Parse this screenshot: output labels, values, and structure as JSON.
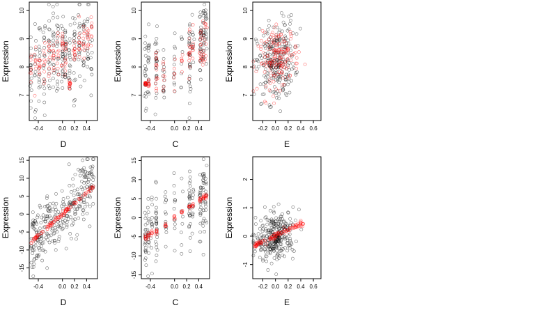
{
  "chart_data": [
    {
      "type": "scatter",
      "panel": "top-left",
      "xlabel": "D",
      "ylabel": "Expression",
      "xlim": [
        -0.55,
        0.58
      ],
      "ylim": [
        6.1,
        10.3
      ],
      "xticks": [
        -0.4,
        0.0,
        0.2,
        0.4
      ],
      "xtick_labels": [
        "-0.4",
        "0.0",
        "0.2",
        "0.4"
      ],
      "yticks": [
        7,
        8,
        9,
        10
      ],
      "ytick_labels": [
        "7",
        "8",
        "9",
        "10"
      ],
      "grid": false,
      "legend": "none",
      "series": [
        {
          "color": "#000000",
          "x_groups": [
            -0.52,
            -0.45,
            -0.38,
            -0.3,
            -0.22,
            -0.15,
            -0.08,
            0.0,
            0.05,
            0.12,
            0.2,
            0.28,
            0.35,
            0.42,
            0.48
          ],
          "y_centers": [
            7.8,
            7.9,
            8.0,
            8.1,
            8.3,
            8.4,
            8.5,
            8.6,
            8.5,
            8.3,
            8.7,
            8.9,
            8.8,
            9.0,
            8.7
          ],
          "y_spread": [
            0.9,
            0.8,
            0.9,
            0.9,
            0.8,
            0.9,
            0.9,
            0.8,
            0.7,
            0.8,
            0.9,
            0.8,
            0.8,
            0.8,
            0.8
          ],
          "n_per_group": [
            14,
            12,
            16,
            18,
            18,
            18,
            18,
            22,
            20,
            18,
            20,
            18,
            16,
            14,
            10
          ]
        },
        {
          "color": "#ff0000",
          "x_groups": [
            -0.52,
            -0.45,
            -0.38,
            -0.3,
            -0.22,
            -0.15,
            -0.08,
            0.0,
            0.05,
            0.12,
            0.2,
            0.28,
            0.35,
            0.42,
            0.48
          ],
          "y_centers": [
            7.9,
            8.0,
            8.1,
            8.2,
            8.3,
            8.4,
            8.5,
            8.6,
            8.3,
            7.4,
            8.6,
            8.8,
            8.8,
            8.9,
            9.2
          ],
          "y_spread": [
            0.3,
            0.3,
            0.3,
            0.3,
            0.3,
            0.3,
            0.3,
            0.3,
            0.5,
            0.15,
            0.3,
            0.3,
            0.3,
            0.3,
            0.3
          ],
          "n_per_group": [
            8,
            8,
            10,
            10,
            10,
            10,
            10,
            12,
            12,
            12,
            12,
            10,
            10,
            10,
            8
          ]
        }
      ]
    },
    {
      "type": "scatter",
      "panel": "top-middle",
      "xlabel": "C",
      "ylabel": "Expression",
      "xlim": [
        -0.55,
        0.58
      ],
      "ylim": [
        6.1,
        10.3
      ],
      "xticks": [
        -0.4,
        0.0,
        0.2,
        0.4
      ],
      "xtick_labels": [
        "-0.4",
        "0.0",
        "0.2",
        "0.4"
      ],
      "yticks": [
        7,
        8,
        9,
        10
      ],
      "ytick_labels": [
        "7",
        "8",
        "9",
        "10"
      ],
      "grid": false,
      "legend": "none",
      "series": [
        {
          "color": "#000000",
          "x_groups": [
            -0.48,
            -0.43,
            -0.3,
            -0.18,
            0.0,
            0.12,
            0.25,
            0.3,
            0.43,
            0.48,
            0.52
          ],
          "y_centers": [
            7.6,
            7.8,
            8.1,
            8.0,
            8.0,
            8.3,
            8.4,
            8.5,
            8.9,
            9.0,
            9.2
          ],
          "y_spread": [
            0.7,
            0.7,
            0.7,
            0.6,
            0.5,
            0.5,
            0.7,
            0.6,
            0.6,
            0.6,
            0.6
          ],
          "n_per_group": [
            22,
            18,
            26,
            14,
            12,
            8,
            30,
            10,
            26,
            22,
            16
          ]
        },
        {
          "color": "#ff0000",
          "x_groups": [
            -0.48,
            -0.43,
            -0.3,
            -0.18,
            0.0,
            0.12,
            0.25,
            0.3,
            0.43,
            0.48,
            0.52
          ],
          "y_centers": [
            7.4,
            7.4,
            7.9,
            7.8,
            8.0,
            8.2,
            8.4,
            8.6,
            8.8,
            8.9,
            9.0
          ],
          "y_spread": [
            0.05,
            0.1,
            0.5,
            0.4,
            0.3,
            0.3,
            0.5,
            0.5,
            0.5,
            0.5,
            0.5
          ],
          "n_per_group": [
            14,
            10,
            14,
            8,
            6,
            6,
            14,
            8,
            14,
            10,
            8
          ]
        }
      ]
    },
    {
      "type": "scatter",
      "panel": "top-right",
      "xlabel": "E",
      "ylabel": "Expression",
      "xlim": [
        -0.36,
        0.72
      ],
      "ylim": [
        6.1,
        10.3
      ],
      "xticks": [
        -0.2,
        0.0,
        0.2,
        0.4,
        0.6
      ],
      "xtick_labels": [
        "-0.2",
        "0.0",
        "0.2",
        "0.4",
        "0.6"
      ],
      "yticks": [
        7,
        8,
        9,
        10
      ],
      "ytick_labels": [
        "7",
        "8",
        "9",
        "10"
      ],
      "grid": false,
      "legend": "none",
      "series": [
        {
          "color": "#000000",
          "x_center": 0.0,
          "x_spread": 0.15,
          "y_base": 8.2,
          "slope": 1.6,
          "y_spread": 0.7,
          "n": 260
        },
        {
          "color": "#ff0000",
          "x_center": 0.05,
          "x_spread": 0.16,
          "y_base": 8.3,
          "slope": 1.4,
          "y_spread": 0.5,
          "n": 160
        }
      ]
    },
    {
      "type": "scatter",
      "panel": "bottom-left",
      "xlabel": "D",
      "ylabel": "Expression",
      "xlim": [
        -0.55,
        0.58
      ],
      "ylim": [
        -18,
        16
      ],
      "xticks": [
        -0.4,
        0.0,
        0.2,
        0.4
      ],
      "xtick_labels": [
        "-0.4",
        "0.0",
        "0.2",
        "0.4"
      ],
      "yticks": [
        -15,
        -10,
        -5,
        0,
        5,
        10,
        15
      ],
      "ytick_labels": [
        "-15",
        "-10",
        "-5",
        "0",
        "5",
        "10",
        "15"
      ],
      "grid": false,
      "legend": "none",
      "series": [
        {
          "color": "#000000",
          "x_min": -0.52,
          "x_max": 0.52,
          "slope": 15.5,
          "intercept": 0.0,
          "y_spread": 4.5,
          "n": 300
        },
        {
          "color": "#ff0000",
          "x_min": -0.52,
          "x_max": 0.52,
          "slope": 15.0,
          "intercept": 0.0,
          "y_spread": 0.3,
          "n": 110
        }
      ]
    },
    {
      "type": "scatter",
      "panel": "bottom-middle",
      "xlabel": "C",
      "ylabel": "Expression",
      "xlim": [
        -0.55,
        0.58
      ],
      "ylim": [
        -16,
        16
      ],
      "xticks": [
        -0.4,
        0.0,
        0.2,
        0.4
      ],
      "xtick_labels": [
        "-0.4",
        "0.0",
        "0.2",
        "0.4"
      ],
      "yticks": [
        -15,
        -10,
        -5,
        0,
        5,
        10,
        15
      ],
      "ytick_labels": [
        "-15",
        "-10",
        "-5",
        "0",
        "5",
        "10",
        "15"
      ],
      "grid": false,
      "legend": "none",
      "series": [
        {
          "color": "#000000",
          "x_groups": [
            -0.48,
            -0.43,
            -0.38,
            -0.3,
            -0.15,
            0.0,
            0.12,
            0.25,
            0.3,
            0.43,
            0.48,
            0.52
          ],
          "slope": 11.0,
          "intercept": 0.0,
          "y_spread": 4.5,
          "n_per_group": [
            24,
            18,
            12,
            26,
            14,
            12,
            8,
            28,
            10,
            24,
            22,
            16
          ]
        },
        {
          "color": "#ff0000",
          "x_groups": [
            -0.48,
            -0.43,
            -0.38,
            -0.3,
            -0.15,
            0.0,
            0.12,
            0.25,
            0.3,
            0.43,
            0.48,
            0.52
          ],
          "slope": 11.0,
          "intercept": 0.0,
          "y_spread": 0.4,
          "n_per_group": [
            8,
            8,
            6,
            8,
            6,
            6,
            6,
            8,
            6,
            8,
            8,
            8
          ]
        }
      ]
    },
    {
      "type": "scatter",
      "panel": "bottom-right",
      "xlabel": "E",
      "ylabel": "Expression",
      "xlim": [
        -0.36,
        0.72
      ],
      "ylim": [
        -1.5,
        2.8
      ],
      "xticks": [
        -0.2,
        0.0,
        0.2,
        0.4,
        0.6
      ],
      "xtick_labels": [
        "-0.2",
        "0.0",
        "0.2",
        "0.4",
        "0.6"
      ],
      "yticks": [
        -1,
        0,
        1,
        2
      ],
      "ytick_labels": [
        "-1",
        "0",
        "1",
        "2"
      ],
      "grid": false,
      "legend": "none",
      "series": [
        {
          "color": "#000000",
          "x_center": 0.0,
          "x_spread": 0.15,
          "slope": 1.3,
          "intercept": 0.0,
          "y_spread": 0.4,
          "n": 300
        },
        {
          "color": "#ff0000",
          "x_min": -0.33,
          "x_max": 0.45,
          "slope": 1.35,
          "intercept": 0.0,
          "y_spread": 0.05,
          "n": 110
        }
      ]
    }
  ]
}
